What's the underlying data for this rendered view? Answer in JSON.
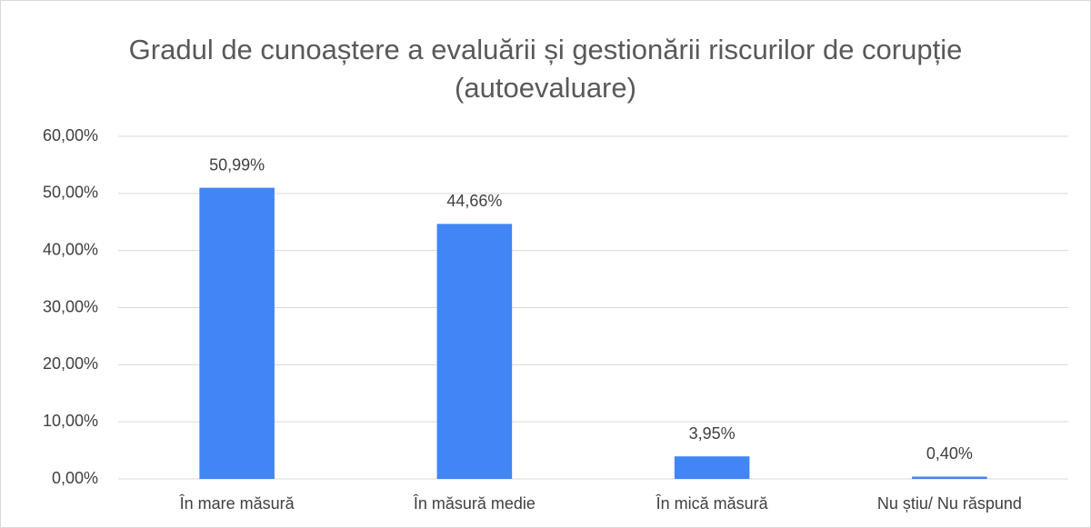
{
  "chart_data": {
    "type": "bar",
    "title": "Gradul de cunoaștere a evaluării și gestionării riscurilor de corupție (autoevaluare)",
    "categories": [
      "În mare măsură",
      "În măsură medie",
      "În mică măsură",
      "Nu știu/ Nu răspund"
    ],
    "values": [
      50.99,
      44.66,
      3.95,
      0.4
    ],
    "value_labels": [
      "50,99%",
      "44,66%",
      "3,95%",
      "0,40%"
    ],
    "color": "#4285f4",
    "ylim": [
      0,
      60
    ],
    "yticks": [
      {
        "value": 0,
        "label": "0,00%"
      },
      {
        "value": 10,
        "label": "10,00%"
      },
      {
        "value": 20,
        "label": "20,00%"
      },
      {
        "value": 30,
        "label": "30,00%"
      },
      {
        "value": 40,
        "label": "40,00%"
      },
      {
        "value": 50,
        "label": "50,00%"
      },
      {
        "value": 60,
        "label": "60,00%"
      }
    ],
    "grid": true
  }
}
